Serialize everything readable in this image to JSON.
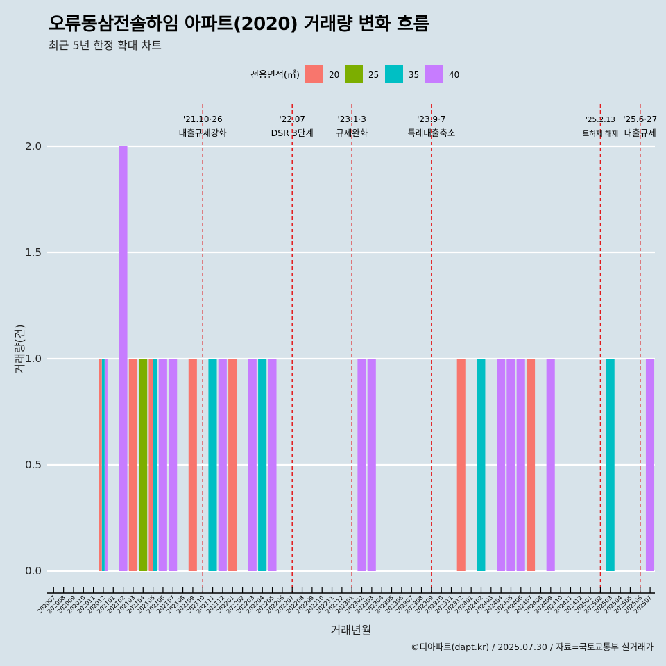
{
  "title": "오류동삼전솔하임 아파트(2020) 거래량 변화 흐름",
  "subtitle": "최근 5년 한정 확대 차트",
  "caption": "©디아파트(dapt.kr) / 2025.07.30 / 자료=국토교통부 실거래가",
  "chart_data": {
    "type": "bar",
    "xlabel": "거래년월",
    "ylabel": "거래량(건)",
    "ylim": [
      0,
      2
    ],
    "y_ticks": [
      "0.0",
      "0.5",
      "1.0",
      "1.5",
      "2.0"
    ],
    "legend": {
      "title": "전용면적(㎡)",
      "position": "top",
      "items": [
        {
          "name": "20",
          "color": "#F8766D"
        },
        {
          "name": "25",
          "color": "#7CAE00"
        },
        {
          "name": "35",
          "color": "#00BFC4"
        },
        {
          "name": "40",
          "color": "#C77CFF"
        }
      ]
    },
    "categories": [
      "202007",
      "202008",
      "202009",
      "202010",
      "202011",
      "202012",
      "202101",
      "202102",
      "202103",
      "202104",
      "202105",
      "202106",
      "202107",
      "202108",
      "202109",
      "202110",
      "202111",
      "202112",
      "202201",
      "202202",
      "202203",
      "202204",
      "202205",
      "202206",
      "202207",
      "202208",
      "202209",
      "202210",
      "202211",
      "202212",
      "202301",
      "202302",
      "202303",
      "202304",
      "202305",
      "202306",
      "202307",
      "202308",
      "202309",
      "202310",
      "202311",
      "202312",
      "202401",
      "202402",
      "202403",
      "202404",
      "202405",
      "202406",
      "202407",
      "202408",
      "202409",
      "202410",
      "202411",
      "202412",
      "202501",
      "202502",
      "202503",
      "202504",
      "202505",
      "202506",
      "202507"
    ],
    "bars": [
      {
        "month": "202012",
        "segments": [
          {
            "area": "20",
            "value": 1
          },
          {
            "area": "35",
            "value": 1
          },
          {
            "area": "40",
            "value": 1
          }
        ]
      },
      {
        "month": "202102",
        "segments": [
          {
            "area": "40",
            "value": 2
          }
        ]
      },
      {
        "month": "202103",
        "segments": [
          {
            "area": "20",
            "value": 1
          }
        ]
      },
      {
        "month": "202104",
        "segments": [
          {
            "area": "25",
            "value": 1
          }
        ]
      },
      {
        "month": "202105",
        "segments": [
          {
            "area": "20",
            "value": 1
          },
          {
            "area": "35",
            "value": 1
          }
        ]
      },
      {
        "month": "202106",
        "segments": [
          {
            "area": "40",
            "value": 1
          }
        ]
      },
      {
        "month": "202107",
        "segments": [
          {
            "area": "40",
            "value": 1
          }
        ]
      },
      {
        "month": "202109",
        "segments": [
          {
            "area": "20",
            "value": 1
          }
        ]
      },
      {
        "month": "202111",
        "segments": [
          {
            "area": "35",
            "value": 1
          }
        ]
      },
      {
        "month": "202112",
        "segments": [
          {
            "area": "40",
            "value": 1
          }
        ]
      },
      {
        "month": "202201",
        "segments": [
          {
            "area": "20",
            "value": 1
          }
        ]
      },
      {
        "month": "202203",
        "segments": [
          {
            "area": "40",
            "value": 1
          }
        ]
      },
      {
        "month": "202204",
        "segments": [
          {
            "area": "35",
            "value": 1
          }
        ]
      },
      {
        "month": "202205",
        "segments": [
          {
            "area": "40",
            "value": 1
          }
        ]
      },
      {
        "month": "202302",
        "segments": [
          {
            "area": "40",
            "value": 1
          }
        ]
      },
      {
        "month": "202303",
        "segments": [
          {
            "area": "40",
            "value": 1
          }
        ]
      },
      {
        "month": "202312",
        "segments": [
          {
            "area": "20",
            "value": 1
          }
        ]
      },
      {
        "month": "202402",
        "segments": [
          {
            "area": "35",
            "value": 1
          }
        ]
      },
      {
        "month": "202404",
        "segments": [
          {
            "area": "40",
            "value": 1
          }
        ]
      },
      {
        "month": "202405",
        "segments": [
          {
            "area": "40",
            "value": 1
          }
        ]
      },
      {
        "month": "202406",
        "segments": [
          {
            "area": "40",
            "value": 1
          }
        ]
      },
      {
        "month": "202407",
        "segments": [
          {
            "area": "20",
            "value": 1
          }
        ]
      },
      {
        "month": "202409",
        "segments": [
          {
            "area": "40",
            "value": 1
          }
        ]
      },
      {
        "month": "202503",
        "segments": [
          {
            "area": "35",
            "value": 1
          }
        ]
      },
      {
        "month": "202507",
        "segments": [
          {
            "area": "40",
            "value": 1
          }
        ]
      }
    ],
    "events": [
      {
        "month_pos": 15.0,
        "date": "'21.10·26",
        "label": "대출규제강화",
        "small": false
      },
      {
        "month_pos": 24.0,
        "date": "'22.07",
        "label": "DSR 3단계",
        "small": false
      },
      {
        "month_pos": 30.0,
        "date": "'23.1·3",
        "label": "규제완화",
        "small": false
      },
      {
        "month_pos": 38.0,
        "date": "'23.9·7",
        "label": "특례대출축소",
        "small": false
      },
      {
        "month_pos": 55.0,
        "date": "'25.2.13",
        "label": "토허제 해제",
        "small": true
      },
      {
        "month_pos": 59.0,
        "date": "'25.6·27",
        "label": "대출규제",
        "small": false
      }
    ],
    "event_line_color": "#e31a1c",
    "grid": true
  }
}
